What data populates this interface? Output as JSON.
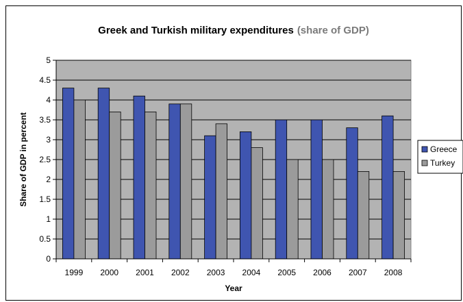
{
  "chart_data": {
    "type": "bar",
    "title": "Greek and Turkish military expenditures",
    "subtitle": "(share of GDP)",
    "xlabel": "Year",
    "ylabel": "Share of GDP in percent",
    "categories": [
      "1999",
      "2000",
      "2001",
      "2002",
      "2003",
      "2004",
      "2005",
      "2006",
      "2007",
      "2008"
    ],
    "series": [
      {
        "name": "Greece",
        "color": "#3f55b0",
        "values": [
          4.3,
          4.3,
          4.1,
          3.9,
          3.1,
          3.2,
          3.5,
          3.5,
          3.3,
          3.6
        ]
      },
      {
        "name": "Turkey",
        "color": "#9b9b9b",
        "values": [
          4.0,
          3.7,
          3.7,
          3.9,
          3.4,
          2.8,
          2.5,
          2.5,
          2.2,
          2.2
        ]
      }
    ],
    "ylim": [
      0,
      5
    ],
    "yticks": [
      "0",
      "0.5",
      "1",
      "1.5",
      "2",
      "2.5",
      "3",
      "3.5",
      "4",
      "4.5",
      "5"
    ],
    "grid": true,
    "legend_position": "right",
    "plot_background": "#b3b3b3"
  }
}
